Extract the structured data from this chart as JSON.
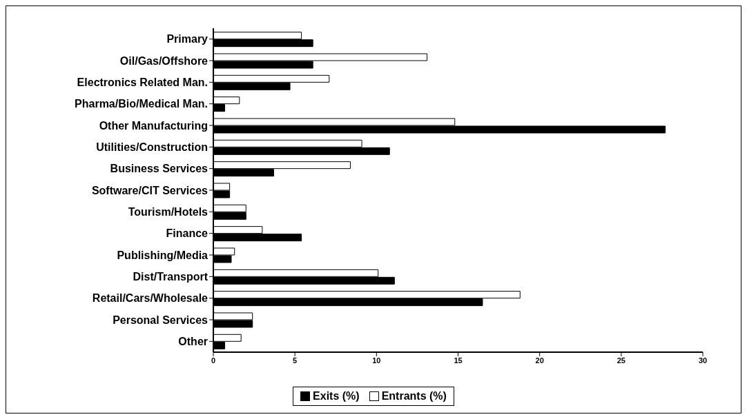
{
  "chart_data": {
    "type": "bar",
    "orientation": "horizontal",
    "categories": [
      "Primary",
      "Oil/Gas/Offshore",
      "Electronics Related Man.",
      "Pharma/Bio/Medical Man.",
      "Other Manufacturing",
      "Utilities/Construction",
      "Business Services",
      "Software/CIT Services",
      "Tourism/Hotels",
      "Finance",
      "Publishing/Media",
      "Dist/Transport",
      "Retail/Cars/Wholesale",
      "Personal Services",
      "Other"
    ],
    "series": [
      {
        "name": "Entrants (%)",
        "color": "#ffffff",
        "values": [
          5.4,
          13.1,
          7.1,
          1.6,
          14.8,
          9.1,
          8.4,
          1.0,
          2.0,
          3.0,
          1.3,
          10.1,
          18.8,
          2.4,
          1.7
        ]
      },
      {
        "name": "Exits (%)",
        "color": "#000000",
        "values": [
          6.1,
          6.1,
          4.7,
          0.7,
          27.7,
          10.8,
          3.7,
          1.0,
          2.0,
          5.4,
          1.1,
          11.1,
          16.5,
          2.4,
          0.7
        ]
      }
    ],
    "xlim": [
      0,
      30
    ],
    "xticks": [
      0,
      5,
      10,
      15,
      20,
      25,
      30
    ],
    "legend": "bottom"
  }
}
